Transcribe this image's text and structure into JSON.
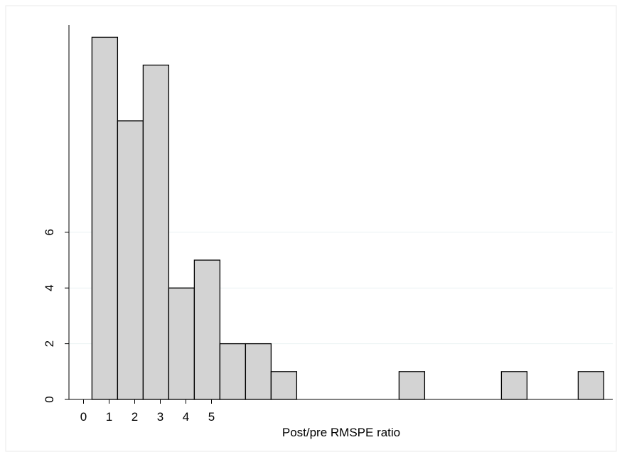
{
  "chart_data": {
    "type": "bar",
    "title": "",
    "xlabel": "Post/pre RMSPE ratio",
    "ylabel": "",
    "x_ticks": [
      0,
      1,
      2,
      3,
      4,
      5
    ],
    "y_ticks": [
      0,
      2,
      4,
      6
    ],
    "bin_width": 1,
    "bins": [
      {
        "start": 0.33,
        "count": 13
      },
      {
        "start": 1.33,
        "count": 10
      },
      {
        "start": 2.33,
        "count": 12
      },
      {
        "start": 3.33,
        "count": 4
      },
      {
        "start": 4.33,
        "count": 5
      },
      {
        "start": 5.33,
        "count": 2
      },
      {
        "start": 6.33,
        "count": 2
      },
      {
        "start": 7.33,
        "count": 1
      },
      {
        "start": 12.33,
        "count": 1
      },
      {
        "start": 16.33,
        "count": 1
      },
      {
        "start": 19.33,
        "count": 1
      }
    ],
    "xlim": [
      -0.5,
      20.5
    ],
    "ylim": [
      0,
      13.25
    ],
    "grid": true,
    "legend": "none",
    "colors": {
      "bar_fill": "#d3d3d3",
      "bar_stroke": "#000000",
      "grid": "#eaf2f3",
      "axis": "#000000",
      "frame": "#e8e8e8"
    }
  }
}
